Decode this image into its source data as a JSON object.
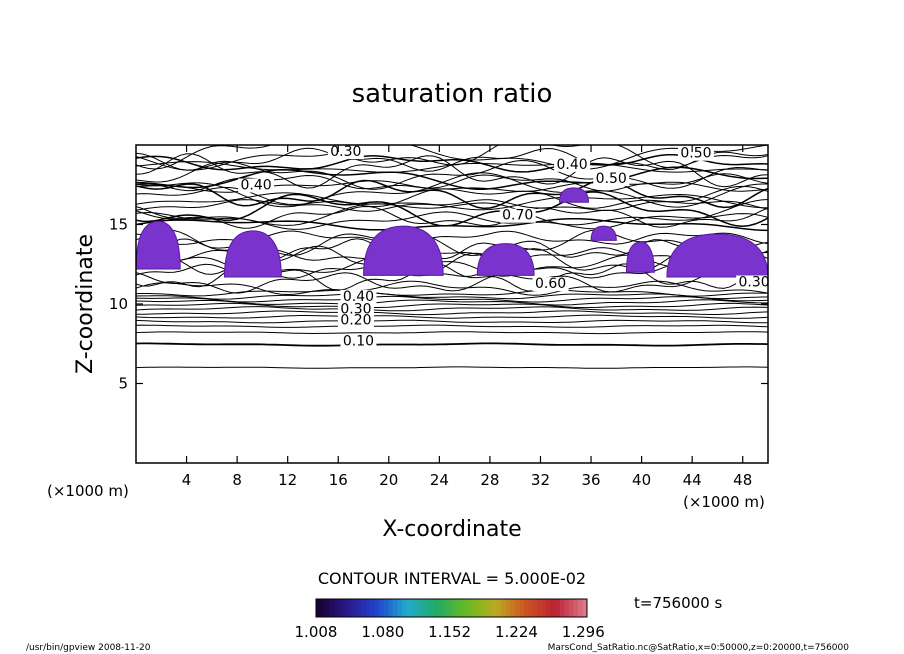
{
  "chart_data": {
    "type": "heatmap",
    "title": "saturation ratio",
    "xlabel": "X-coordinate",
    "ylabel": "Z-coordinate",
    "x_unit_label": "(×1000 m)",
    "x_ticks": [
      4,
      8,
      12,
      16,
      20,
      24,
      28,
      32,
      36,
      40,
      44,
      48
    ],
    "y_ticks": [
      5,
      10,
      15
    ],
    "xlim": [
      0,
      50
    ],
    "ylim": [
      0,
      20
    ],
    "contour_interval_label": "CONTOUR INTERVAL = 5.000E-02",
    "contour_labels": [
      {
        "text": "0.30",
        "x": 16.6,
        "z": 19.3
      },
      {
        "text": "0.40",
        "x": 34.5,
        "z": 18.5
      },
      {
        "text": "0.50",
        "x": 44.3,
        "z": 19.2
      },
      {
        "text": "0.40",
        "x": 9.5,
        "z": 17.2
      },
      {
        "text": "0.50",
        "x": 37.6,
        "z": 17.6
      },
      {
        "text": "0.70",
        "x": 30.2,
        "z": 15.3
      },
      {
        "text": "0.60",
        "x": 32.8,
        "z": 11.0
      },
      {
        "text": "0.30",
        "x": 48.9,
        "z": 11.1
      },
      {
        "text": "0.40",
        "x": 17.6,
        "z": 10.2
      },
      {
        "text": "0.30",
        "x": 17.4,
        "z": 9.4
      },
      {
        "text": "0.20",
        "x": 17.4,
        "z": 8.7
      },
      {
        "text": "0.10",
        "x": 17.6,
        "z": 7.4
      }
    ],
    "supersaturated_regions": [
      {
        "x": [
          0.0,
          3.5
        ],
        "z": [
          12.2,
          15.2
        ]
      },
      {
        "x": [
          7.0,
          11.5
        ],
        "z": [
          11.7,
          14.6
        ]
      },
      {
        "x": [
          18.0,
          24.3
        ],
        "z": [
          11.8,
          14.9
        ]
      },
      {
        "x": [
          27.0,
          31.5
        ],
        "z": [
          11.8,
          13.8
        ]
      },
      {
        "x": [
          33.5,
          35.8
        ],
        "z": [
          16.4,
          17.3
        ]
      },
      {
        "x": [
          36.0,
          38.0
        ],
        "z": [
          14.0,
          14.9
        ]
      },
      {
        "x": [
          38.8,
          41.0
        ],
        "z": [
          12.0,
          13.9
        ]
      },
      {
        "x": [
          42.0,
          50.0
        ],
        "z": [
          11.7,
          14.4
        ]
      }
    ],
    "colorbar": {
      "tick_labels": [
        "1.008",
        "1.080",
        "1.152",
        "1.224",
        "1.296"
      ],
      "range": [
        1.008,
        1.3
      ],
      "colors": [
        "#1a0033",
        "#2a1a8c",
        "#2244cc",
        "#22aacc",
        "#22aa66",
        "#66bb22",
        "#bbaa22",
        "#cc5522",
        "#bb2233",
        "#dd7788"
      ]
    },
    "time_label": "t=756000 s"
  },
  "footer": {
    "left": "/usr/bin/gpview   2008-11-20",
    "right": "MarsCond_SatRatio.nc@SatRatio,x=0:50000,z=0:20000,t=756000"
  }
}
